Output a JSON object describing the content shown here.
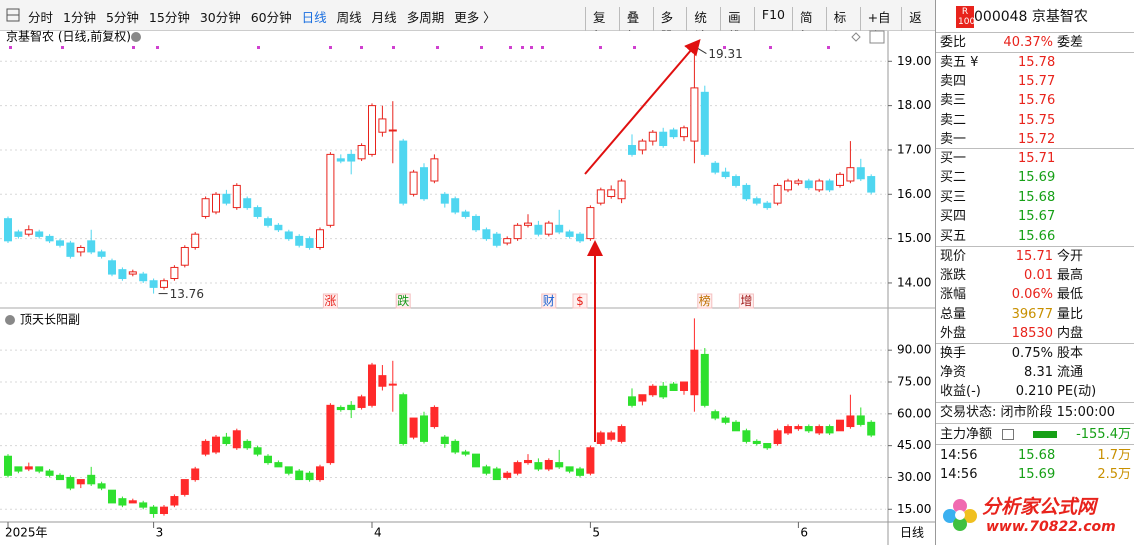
{
  "toolbar": {
    "periods": [
      "分时",
      "1分钟",
      "5分钟",
      "15分钟",
      "30分钟",
      "60分钟",
      "日线",
      "周线",
      "月线",
      "多周期",
      "更多 〉"
    ],
    "tools": [
      "复权",
      "叠加",
      "多股",
      "统计",
      "画线",
      "F10",
      "简框",
      "标记",
      "+自选",
      "返回"
    ]
  },
  "x_axis_corner": "日线",
  "chart_data": [
    {
      "type": "candlestick",
      "title": "京基智农 (日线,前复权)",
      "up_color": "#e8231c",
      "down_color": "#4fd6f0",
      "up_hollow": true,
      "grid": true,
      "ylim": [
        13.48,
        19.39
      ],
      "yticks": [
        {
          "value": 14,
          "label": "14.00"
        },
        {
          "value": 15,
          "label": "15.00"
        },
        {
          "value": 16,
          "label": "16.00"
        },
        {
          "value": 17,
          "label": "17.00"
        },
        {
          "value": 18,
          "label": "18.00"
        },
        {
          "value": 19,
          "label": "19.00"
        }
      ],
      "categories": [
        "2025年",
        null,
        null,
        null,
        null,
        null,
        null,
        null,
        null,
        null,
        null,
        null,
        null,
        null,
        "3",
        null,
        null,
        null,
        null,
        null,
        null,
        null,
        null,
        null,
        null,
        null,
        null,
        null,
        null,
        null,
        null,
        null,
        null,
        null,
        null,
        "4",
        null,
        null,
        null,
        null,
        null,
        null,
        null,
        null,
        null,
        null,
        null,
        null,
        null,
        null,
        null,
        null,
        null,
        null,
        null,
        null,
        "5",
        null,
        null,
        null,
        null,
        null,
        null,
        null,
        null,
        null,
        null,
        null,
        null,
        null,
        null,
        null,
        null,
        null,
        null,
        null,
        "6",
        null,
        null,
        null,
        null,
        null,
        null,
        null
      ],
      "events": [
        null,
        null,
        null,
        null,
        null,
        null,
        null,
        null,
        null,
        null,
        null,
        null,
        null,
        null,
        null,
        null,
        null,
        null,
        null,
        null,
        null,
        null,
        null,
        null,
        null,
        null,
        null,
        null,
        null,
        null,
        null,
        {
          "label": "涨",
          "color": "#e8231c"
        },
        null,
        null,
        null,
        null,
        null,
        null,
        {
          "label": "跌",
          "color": "#1a9a1a"
        },
        null,
        null,
        null,
        null,
        null,
        null,
        null,
        null,
        null,
        null,
        null,
        null,
        null,
        {
          "label": "财",
          "color": "#1a5fd0"
        },
        null,
        null,
        {
          "label": "$",
          "color": "#e8231c"
        },
        null,
        null,
        null,
        null,
        null,
        null,
        null,
        null,
        null,
        null,
        null,
        {
          "label": "榜",
          "color": "#c07000"
        },
        null,
        null,
        null,
        {
          "label": "增",
          "color": "#a01818"
        },
        null,
        null,
        null,
        null,
        null,
        null,
        null,
        null,
        null,
        null,
        null,
        null
      ],
      "ohlc": [
        [
          15.45,
          15.5,
          14.9,
          14.95
        ],
        [
          15.15,
          15.2,
          15.0,
          15.05
        ],
        [
          15.1,
          15.3,
          15.05,
          15.2
        ],
        [
          15.15,
          15.2,
          15.0,
          15.05
        ],
        [
          15.05,
          15.1,
          14.9,
          14.95
        ],
        [
          14.95,
          15.0,
          14.8,
          14.85
        ],
        [
          14.9,
          14.95,
          14.55,
          14.6
        ],
        [
          14.7,
          14.85,
          14.6,
          14.8
        ],
        [
          14.95,
          15.2,
          14.65,
          14.7
        ],
        [
          14.7,
          14.75,
          14.55,
          14.6
        ],
        [
          14.5,
          14.55,
          14.15,
          14.2
        ],
        [
          14.3,
          14.35,
          14.05,
          14.1
        ],
        [
          14.2,
          14.3,
          14.15,
          14.25
        ],
        [
          14.2,
          14.25,
          14.0,
          14.05
        ],
        [
          14.05,
          14.1,
          13.76,
          13.9
        ],
        [
          13.9,
          14.1,
          13.85,
          14.05
        ],
        [
          14.1,
          14.4,
          14.05,
          14.35
        ],
        [
          14.4,
          14.85,
          14.35,
          14.8
        ],
        [
          14.8,
          15.15,
          14.75,
          15.1
        ],
        [
          15.5,
          15.95,
          15.45,
          15.9
        ],
        [
          15.6,
          16.05,
          15.55,
          16.0
        ],
        [
          16.0,
          16.1,
          15.75,
          15.8
        ],
        [
          15.7,
          16.25,
          15.65,
          16.2
        ],
        [
          15.9,
          15.95,
          15.65,
          15.7
        ],
        [
          15.7,
          15.75,
          15.45,
          15.5
        ],
        [
          15.45,
          15.5,
          15.25,
          15.3
        ],
        [
          15.3,
          15.35,
          15.15,
          15.2
        ],
        [
          15.15,
          15.2,
          14.95,
          15.0
        ],
        [
          15.05,
          15.1,
          14.8,
          14.85
        ],
        [
          15.0,
          15.05,
          14.75,
          14.8
        ],
        [
          14.8,
          15.25,
          14.75,
          15.2
        ],
        [
          15.3,
          16.95,
          15.25,
          16.9
        ],
        [
          16.8,
          16.9,
          16.7,
          16.75
        ],
        [
          16.9,
          17.0,
          16.45,
          16.75
        ],
        [
          16.8,
          17.15,
          16.75,
          17.1
        ],
        [
          16.9,
          18.05,
          16.85,
          18.0
        ],
        [
          17.4,
          18.0,
          17.3,
          17.7
        ],
        [
          17.45,
          18.1,
          16.7,
          17.45
        ],
        [
          17.2,
          17.25,
          15.75,
          15.8
        ],
        [
          16.0,
          16.55,
          15.95,
          16.5
        ],
        [
          16.6,
          16.7,
          15.85,
          15.9
        ],
        [
          16.3,
          16.9,
          16.25,
          16.8
        ],
        [
          16.0,
          16.05,
          15.7,
          15.8
        ],
        [
          15.9,
          15.95,
          15.55,
          15.6
        ],
        [
          15.6,
          15.65,
          15.45,
          15.5
        ],
        [
          15.5,
          15.55,
          15.15,
          15.2
        ],
        [
          15.2,
          15.25,
          14.95,
          15.0
        ],
        [
          15.1,
          15.15,
          14.8,
          14.85
        ],
        [
          14.9,
          15.05,
          14.85,
          15.0
        ],
        [
          15.0,
          15.35,
          14.95,
          15.3
        ],
        [
          15.3,
          15.55,
          15.25,
          15.35
        ],
        [
          15.3,
          15.4,
          15.05,
          15.1
        ],
        [
          15.1,
          15.4,
          15.05,
          15.35
        ],
        [
          15.3,
          15.65,
          15.1,
          15.15
        ],
        [
          15.15,
          15.2,
          15.0,
          15.05
        ],
        [
          15.1,
          15.15,
          14.9,
          14.95
        ],
        [
          15.0,
          15.75,
          14.95,
          15.7
        ],
        [
          15.8,
          16.15,
          15.75,
          16.1
        ],
        [
          15.95,
          16.2,
          15.9,
          16.1
        ],
        [
          15.9,
          16.35,
          15.8,
          16.3
        ],
        [
          17.1,
          17.35,
          16.85,
          16.9
        ],
        [
          17.0,
          17.25,
          16.9,
          17.2
        ],
        [
          17.2,
          17.45,
          17.1,
          17.4
        ],
        [
          17.4,
          17.5,
          17.05,
          17.1
        ],
        [
          17.45,
          17.5,
          17.25,
          17.3
        ],
        [
          17.3,
          17.55,
          17.2,
          17.5
        ],
        [
          17.2,
          19.31,
          16.7,
          18.4
        ],
        [
          18.3,
          18.45,
          16.85,
          16.9
        ],
        [
          16.7,
          16.75,
          16.45,
          16.5
        ],
        [
          16.5,
          16.6,
          16.35,
          16.4
        ],
        [
          16.4,
          16.45,
          16.15,
          16.2
        ],
        [
          16.2,
          16.25,
          15.85,
          15.9
        ],
        [
          15.9,
          15.95,
          15.75,
          15.8
        ],
        [
          15.8,
          15.85,
          15.65,
          15.7
        ],
        [
          15.8,
          16.25,
          15.75,
          16.2
        ],
        [
          16.1,
          16.35,
          16.05,
          16.3
        ],
        [
          16.25,
          16.35,
          16.2,
          16.3
        ],
        [
          16.3,
          16.35,
          16.1,
          16.15
        ],
        [
          16.1,
          16.35,
          16.05,
          16.3
        ],
        [
          16.3,
          16.35,
          16.05,
          16.1
        ],
        [
          16.2,
          16.5,
          16.15,
          16.45
        ],
        [
          16.3,
          17.2,
          16.25,
          16.6
        ],
        [
          16.6,
          16.8,
          16.3,
          16.35
        ],
        [
          16.4,
          16.45,
          16.0,
          16.05
        ]
      ]
    },
    {
      "type": "candlestick",
      "title": "顶天长阳副",
      "up_color": "#ff2a2a",
      "down_color": "#2ee02e",
      "up_hollow": false,
      "grid": true,
      "ylim": [
        9,
        108
      ],
      "yticks": [
        {
          "value": 15,
          "label": "15.00"
        },
        {
          "value": 30,
          "label": "30.00"
        },
        {
          "value": 45,
          "label": "45.00"
        },
        {
          "value": 60,
          "label": "60.00"
        },
        {
          "value": 75,
          "label": "75.00"
        },
        {
          "value": 90,
          "label": "90.00"
        }
      ],
      "ohlc": [
        [
          40,
          41,
          30,
          31
        ],
        [
          35,
          35,
          32,
          33
        ],
        [
          34,
          37,
          33,
          35
        ],
        [
          35,
          35,
          32,
          33
        ],
        [
          33,
          34,
          30,
          31
        ],
        [
          31,
          32,
          29,
          29
        ],
        [
          30,
          31,
          24,
          25
        ],
        [
          27,
          29,
          25,
          29
        ],
        [
          31,
          35,
          26,
          27
        ],
        [
          27,
          28,
          24,
          25
        ],
        [
          24,
          24,
          18,
          18
        ],
        [
          20,
          21,
          16,
          17
        ],
        [
          18,
          20,
          18,
          19
        ],
        [
          18,
          19,
          15,
          16
        ],
        [
          16,
          17,
          11,
          13
        ],
        [
          13,
          17,
          12,
          16
        ],
        [
          17,
          22,
          16,
          21
        ],
        [
          22,
          29,
          21,
          29
        ],
        [
          29,
          35,
          28,
          34
        ],
        [
          41,
          48,
          40,
          47
        ],
        [
          42,
          50,
          41,
          49
        ],
        [
          49,
          51,
          45,
          46
        ],
        [
          44,
          53,
          43,
          52
        ],
        [
          47,
          48,
          43,
          44
        ],
        [
          44,
          45,
          40,
          41
        ],
        [
          40,
          41,
          36,
          37
        ],
        [
          37,
          38,
          35,
          35
        ],
        [
          35,
          35,
          31,
          32
        ],
        [
          33,
          34,
          29,
          29
        ],
        [
          32,
          33,
          28,
          29
        ],
        [
          29,
          36,
          28,
          35
        ],
        [
          37,
          65,
          36,
          64
        ],
        [
          63,
          64,
          61,
          62
        ],
        [
          64,
          66,
          58,
          62
        ],
        [
          63,
          69,
          62,
          68
        ],
        [
          64,
          84,
          63,
          83
        ],
        [
          73,
          83,
          71,
          78
        ],
        [
          74,
          85,
          61,
          74
        ],
        [
          69,
          70,
          45,
          46
        ],
        [
          49,
          58,
          48,
          58
        ],
        [
          59,
          61,
          46,
          47
        ],
        [
          54,
          64,
          53,
          63
        ],
        [
          49,
          50,
          44,
          46
        ],
        [
          47,
          48,
          41,
          42
        ],
        [
          42,
          43,
          40,
          41
        ],
        [
          41,
          41,
          35,
          35
        ],
        [
          35,
          36,
          31,
          32
        ],
        [
          34,
          35,
          29,
          29
        ],
        [
          30,
          33,
          29,
          32
        ],
        [
          32,
          38,
          31,
          37
        ],
        [
          37,
          41,
          36,
          38
        ],
        [
          37,
          39,
          33,
          34
        ],
        [
          34,
          39,
          33,
          38
        ],
        [
          37,
          43,
          34,
          35
        ],
        [
          35,
          35,
          32,
          33
        ],
        [
          34,
          35,
          30,
          31
        ],
        [
          32,
          45,
          31,
          44
        ],
        [
          46,
          52,
          45,
          51
        ],
        [
          48,
          52,
          47,
          51
        ],
        [
          47,
          55,
          46,
          54
        ],
        [
          68,
          72,
          63,
          64
        ],
        [
          66,
          69,
          64,
          69
        ],
        [
          69,
          74,
          68,
          73
        ],
        [
          73,
          75,
          67,
          68
        ],
        [
          74,
          75,
          71,
          71
        ],
        [
          71,
          75,
          69,
          75
        ],
        [
          69,
          105,
          61,
          90
        ],
        [
          88,
          91,
          63,
          64
        ],
        [
          61,
          62,
          57,
          58
        ],
        [
          58,
          59,
          55,
          56
        ],
        [
          56,
          57,
          52,
          52
        ],
        [
          52,
          53,
          46,
          47
        ],
        [
          47,
          48,
          45,
          46
        ],
        [
          46,
          46,
          43,
          44
        ],
        [
          46,
          53,
          45,
          52
        ],
        [
          51,
          55,
          50,
          54
        ],
        [
          53,
          55,
          52,
          54
        ],
        [
          54,
          55,
          51,
          52
        ],
        [
          51,
          55,
          50,
          54
        ],
        [
          54,
          55,
          50,
          51
        ],
        [
          52,
          57,
          52,
          57
        ],
        [
          54,
          69,
          53,
          59
        ],
        [
          59,
          63,
          54,
          55
        ],
        [
          56,
          57,
          49,
          50
        ]
      ]
    }
  ],
  "quote": {
    "badge": "R",
    "badge_sub": "1000",
    "title": "000048 京基智农",
    "wei": [
      "委比",
      "40.37%",
      "委差"
    ],
    "asks": [
      [
        "卖五 ¥",
        "15.78"
      ],
      [
        "卖四",
        "15.77"
      ],
      [
        "卖三",
        "15.76"
      ],
      [
        "卖二",
        "15.75"
      ],
      [
        "卖一",
        "15.72"
      ]
    ],
    "bids": [
      [
        "买一",
        "15.71"
      ],
      [
        "买二",
        "15.69"
      ],
      [
        "买三",
        "15.68"
      ],
      [
        "买四",
        "15.67"
      ],
      [
        "买五",
        "15.66"
      ]
    ],
    "stats": [
      [
        "现价",
        "15.71",
        "今开"
      ],
      [
        "涨跌",
        "0.01",
        "最高"
      ],
      [
        "涨幅",
        "0.06%",
        "最低"
      ],
      [
        "总量",
        "39677",
        "量比"
      ],
      [
        "外盘",
        "18530",
        "内盘"
      ]
    ],
    "stats2": [
      [
        "换手",
        "0.75%",
        "股本"
      ],
      [
        "净资",
        "8.31",
        "流通"
      ],
      [
        "收益(-)",
        "0.210",
        "PE(动)"
      ]
    ],
    "status": "交易状态: 闭市阶段 15:00:00",
    "flow": [
      "主力净额",
      "-155.4万"
    ],
    "ticks": [
      [
        "14:56",
        "15.68",
        "1.7万"
      ],
      [
        "14:56",
        "15.69",
        "2.5万"
      ]
    ]
  },
  "watermark": {
    "title": "分析家公式网",
    "url": "www.70822.com"
  }
}
